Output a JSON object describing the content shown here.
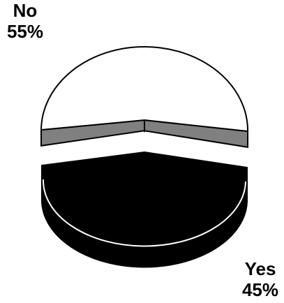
{
  "chart_data": {
    "type": "pie",
    "style": "3d-exploded",
    "slices": [
      {
        "category": "No",
        "value": 55,
        "display": "55%",
        "color": "#ffffff",
        "edge_color": "#808080"
      },
      {
        "category": "Yes",
        "value": 45,
        "display": "45%",
        "color": "#000000",
        "edge_color": "#000000"
      }
    ],
    "title": "",
    "legend": "none"
  }
}
